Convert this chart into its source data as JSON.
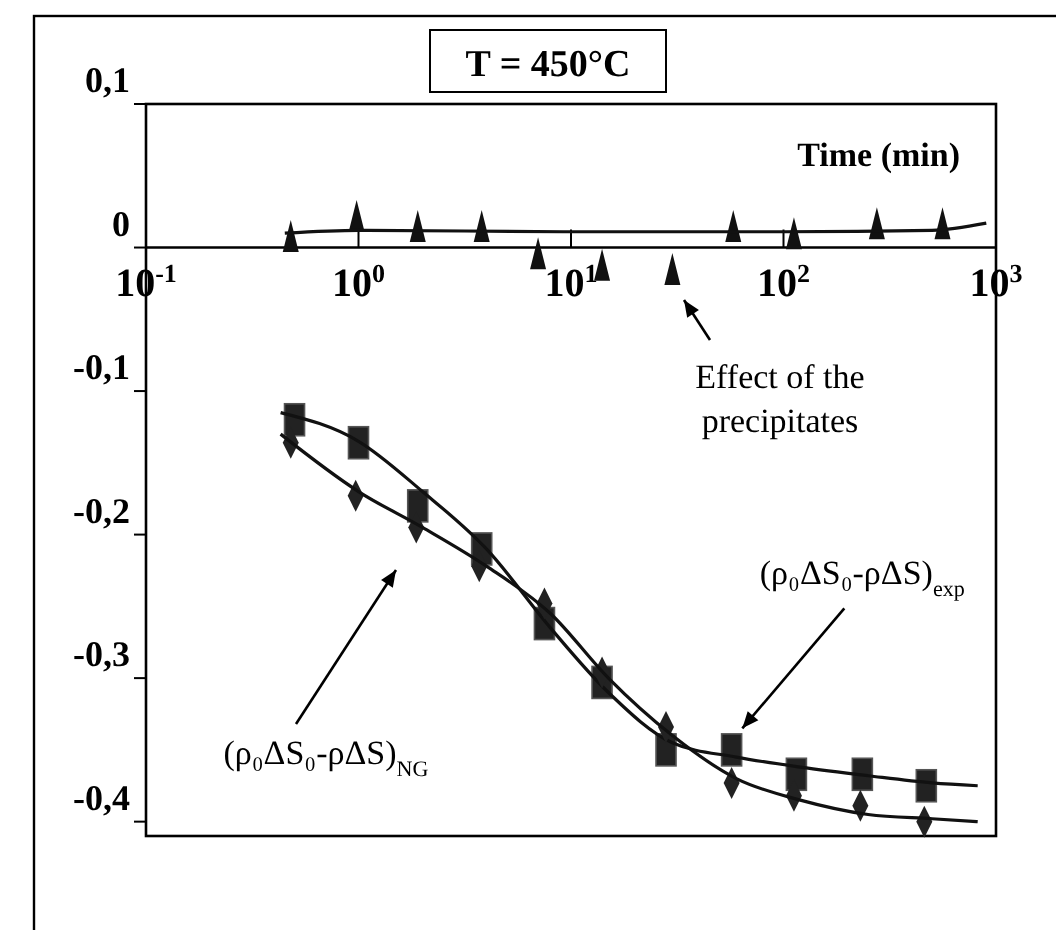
{
  "chart_data": {
    "type": "scatter",
    "title": "T = 450°C",
    "xlabel": "Time (min)",
    "log": "x",
    "grid": false,
    "xlim": [
      0.1,
      1000
    ],
    "xticks": [
      {
        "value": 0.1,
        "label": "10$^{-1}$"
      },
      {
        "value": 1,
        "label": "10$^{0}$"
      },
      {
        "value": 10,
        "label": "10$^{1}$"
      },
      {
        "value": 100,
        "label": "10$^{2}$"
      },
      {
        "value": 1000,
        "label": "10$^{3}$"
      }
    ],
    "ylim": [
      -0.41,
      0.1
    ],
    "yticks": [
      {
        "value": 0.1,
        "label": "0,1"
      },
      {
        "value": 0,
        "label": "0"
      },
      {
        "value": -0.1,
        "label": "-0,1"
      },
      {
        "value": -0.2,
        "label": "-0,2"
      },
      {
        "value": -0.3,
        "label": "-0,3"
      },
      {
        "value": -0.4,
        "label": "-0,4"
      }
    ],
    "series": [
      {
        "marker": "triangle",
        "color": "#111111",
        "x": [
          0.48,
          0.98,
          1.9,
          3.8,
          7,
          14,
          30,
          58,
          112,
          275,
          560
        ],
        "values": [
          0.008,
          0.022,
          0.015,
          0.015,
          -0.004,
          -0.012,
          -0.015,
          0.015,
          0.01,
          0.017,
          0.017
        ]
      },
      {
        "type": "line",
        "marker": "none",
        "color": "#111111",
        "x": [
          0.45,
          1,
          10,
          100,
          500,
          900
        ],
        "values": [
          0.01,
          0.012,
          0.011,
          0.011,
          0.012,
          0.017
        ]
      },
      {
        "marker": "square",
        "color": "#222222",
        "x": [
          0.5,
          1,
          1.9,
          3.8,
          7.5,
          14,
          28,
          57,
          115,
          235,
          470
        ],
        "values": [
          -0.12,
          -0.136,
          -0.18,
          -0.21,
          -0.262,
          -0.303,
          -0.35,
          -0.35,
          -0.367,
          -0.367,
          -0.375
        ]
      },
      {
        "type": "line",
        "marker": "none",
        "color": "#111111",
        "x": [
          0.43,
          1,
          2,
          4,
          8,
          15,
          30,
          60,
          120,
          250,
          500,
          820
        ],
        "values": [
          -0.115,
          -0.135,
          -0.17,
          -0.21,
          -0.265,
          -0.31,
          -0.345,
          -0.355,
          -0.362,
          -0.368,
          -0.373,
          -0.375
        ]
      },
      {
        "marker": "diamond",
        "color": "#222222",
        "x": [
          0.48,
          0.97,
          1.87,
          3.7,
          7.5,
          14,
          28,
          57,
          112,
          230,
          460
        ],
        "values": [
          -0.136,
          -0.173,
          -0.195,
          -0.222,
          -0.248,
          -0.296,
          -0.334,
          -0.373,
          -0.382,
          -0.389,
          -0.4
        ]
      },
      {
        "type": "line",
        "marker": "none",
        "color": "#111111",
        "x": [
          0.43,
          1,
          2,
          4,
          8,
          15,
          30,
          60,
          120,
          250,
          500,
          820
        ],
        "values": [
          -0.13,
          -0.17,
          -0.195,
          -0.222,
          -0.255,
          -0.3,
          -0.34,
          -0.37,
          -0.385,
          -0.395,
          -0.398,
          -0.4
        ]
      }
    ],
    "annotations": [
      "Effect of the precipitates",
      {
        "text": "(ρ₀ΔS₀-ρΔS)$_{exp}$",
        "x": 64,
        "y": -0.335
      },
      "(ρ₀ΔS₀-ρΔS)$_{NG}$"
    ]
  }
}
